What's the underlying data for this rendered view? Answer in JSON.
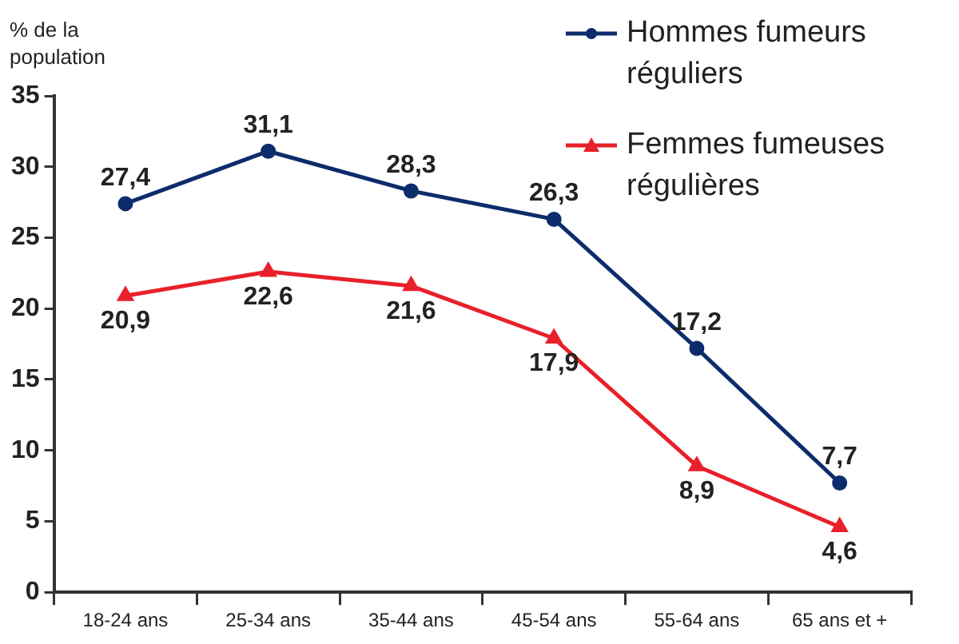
{
  "chart_data": {
    "type": "line",
    "ylabel": "% de la population",
    "categories": [
      "18-24 ans",
      "25-34 ans",
      "35-44 ans",
      "45-54 ans",
      "55-64 ans",
      "65 ans et +"
    ],
    "series": [
      {
        "name": "Hommes fumeurs réguliers",
        "color": "#0d2c6c",
        "marker": "circle",
        "values": [
          27.4,
          31.1,
          28.3,
          26.3,
          17.2,
          7.7
        ],
        "value_labels": [
          "27,4",
          "31,1",
          "28,3",
          "26,3",
          "17,2",
          "7,7"
        ]
      },
      {
        "name": "Femmes fumeuses régulières",
        "color": "#e8202a",
        "marker": "triangle",
        "values": [
          20.9,
          22.6,
          21.6,
          17.9,
          8.9,
          4.6
        ],
        "value_labels": [
          "20,9",
          "22,6",
          "21,6",
          "17,9",
          "8,9",
          "4,6"
        ]
      }
    ],
    "ylim": [
      0,
      35
    ],
    "yticks": [
      0,
      5,
      10,
      15,
      20,
      25,
      30,
      35
    ],
    "grid": false,
    "legend": "top right",
    "line_style": "solid"
  }
}
